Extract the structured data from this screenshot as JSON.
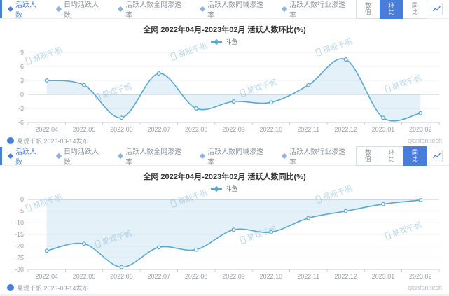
{
  "colors": {
    "accent": "#4a7cd9",
    "line": "#58a9d2",
    "fill": "rgba(88,169,210,0.16)"
  },
  "watermark": "易观千帆",
  "panels": [
    {
      "tabs": [
        {
          "label": "活跃人数",
          "active": true
        },
        {
          "label": "日均活跃人数",
          "active": false
        },
        {
          "label": "活跃人数全网渗透率",
          "active": false
        },
        {
          "label": "活跃人数同域渗透率",
          "active": false
        },
        {
          "label": "活跃人数行业渗透率",
          "active": false
        }
      ],
      "toolbar": {
        "buttons": [
          {
            "label": "数值",
            "active": false
          },
          {
            "label": "环比",
            "active": true
          },
          {
            "label": "同比",
            "active": false
          }
        ]
      },
      "chart_data": {
        "type": "line",
        "title": "全网 2022年04月-2023年02月 活跃人数环比(%)",
        "legend": "斗鱼",
        "categories": [
          "2022.04",
          "2022.05",
          "2022.06",
          "2022.07",
          "2022.08",
          "2022.09",
          "2022.10",
          "2022.11",
          "2022.12",
          "2023.01",
          "2023.02"
        ],
        "values": [
          3,
          2,
          -5,
          4.5,
          -3,
          -1.5,
          -1.7,
          2,
          7.5,
          -5,
          -4
        ],
        "yticks": [
          9,
          6,
          3,
          0,
          -3,
          -6
        ],
        "ylim": [
          -6,
          9
        ],
        "xlabel": "",
        "ylabel": "",
        "grid": true,
        "legend_position": "top"
      },
      "footer": {
        "left": "易观千帆 2023-03-14发布",
        "right": "qianfan.tech"
      }
    },
    {
      "tabs": [
        {
          "label": "活跃人数",
          "active": true
        },
        {
          "label": "日均活跃人数",
          "active": false
        },
        {
          "label": "活跃人数全网渗透率",
          "active": false
        },
        {
          "label": "活跃人数同域渗透率",
          "active": false
        },
        {
          "label": "活跃人数行业渗透率",
          "active": false
        }
      ],
      "toolbar": {
        "buttons": [
          {
            "label": "数值",
            "active": false
          },
          {
            "label": "环比",
            "active": false
          },
          {
            "label": "同比",
            "active": true
          }
        ]
      },
      "chart_data": {
        "type": "line",
        "title": "全网 2022年04月-2023年02月 活跃人数同比(%)",
        "legend": "斗鱼",
        "categories": [
          "2022.04",
          "2022.05",
          "2022.06",
          "2022.07",
          "2022.08",
          "2022.09",
          "2022.10",
          "2022.11",
          "2022.12",
          "2023.01",
          "2023.02"
        ],
        "values": [
          -22,
          -19,
          -29,
          -20.5,
          -21.5,
          -13,
          -14,
          -8,
          -5,
          -2,
          -0.3
        ],
        "yticks": [
          0,
          -5,
          -10,
          -15,
          -20,
          -25,
          -30
        ],
        "ylim": [
          -30,
          0
        ],
        "xlabel": "",
        "ylabel": "",
        "grid": true,
        "legend_position": "top"
      },
      "footer": {
        "left": "易观千帆 2023-03-14发布",
        "right": "qianfan.tech"
      }
    }
  ]
}
